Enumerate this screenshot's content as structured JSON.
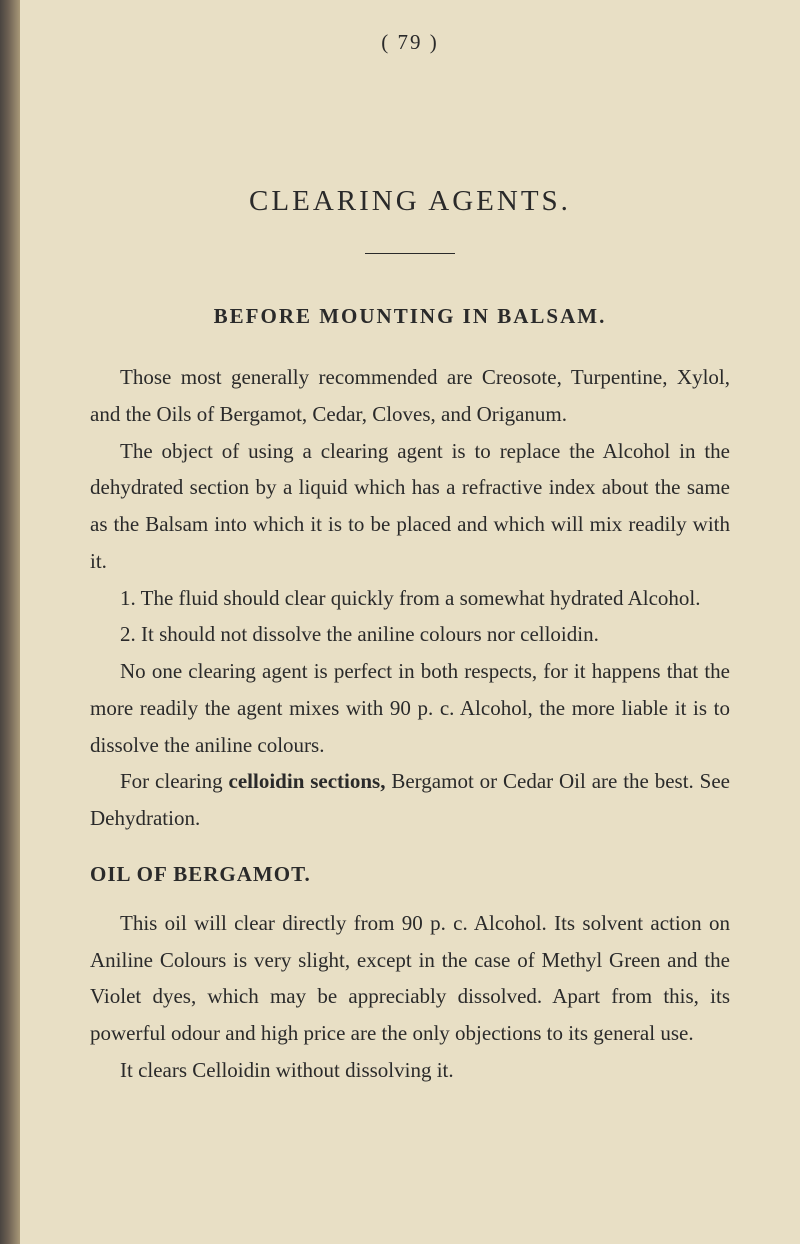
{
  "page_number": "( 79 )",
  "main_title": "CLEARING AGENTS.",
  "section_title": "BEFORE MOUNTING IN BALSAM.",
  "para1": "Those most generally recommended are Creosote, Turpentine, Xylol, and the Oils of Bergamot, Cedar, Cloves, and Origanum.",
  "para2": "The object of using a clearing agent is to replace the Alcohol in the dehydrated section by a liquid which has a refractive index about the same as the Balsam into which it is to be placed and which will mix readily with it.",
  "para3": "1. The fluid should clear quickly from a somewhat hydrated Alcohol.",
  "para4": "2. It should not dissolve the aniline colours nor celloidin.",
  "para5": "No one clearing agent is perfect in both respects, for it happens that the more readily the agent mixes with 90 p. c. Alcohol, the more liable it is to dissolve the aniline colours.",
  "para6_prefix": "For clearing ",
  "para6_bold": "celloidin sections,",
  "para6_suffix": " Bergamot or Cedar Oil are the best. See Dehydration.",
  "subsection_title": "OIL OF BERGAMOT.",
  "para7": "This oil will clear directly from 90 p. c. Alcohol. Its solvent action on Aniline Colours is very slight, except in the case of Methyl Green and the Violet dyes, which may be appreciably dissolved. Apart from this, its powerful odour and high price are the only objections to its general use.",
  "para8": "It clears Celloidin without dissolving it."
}
